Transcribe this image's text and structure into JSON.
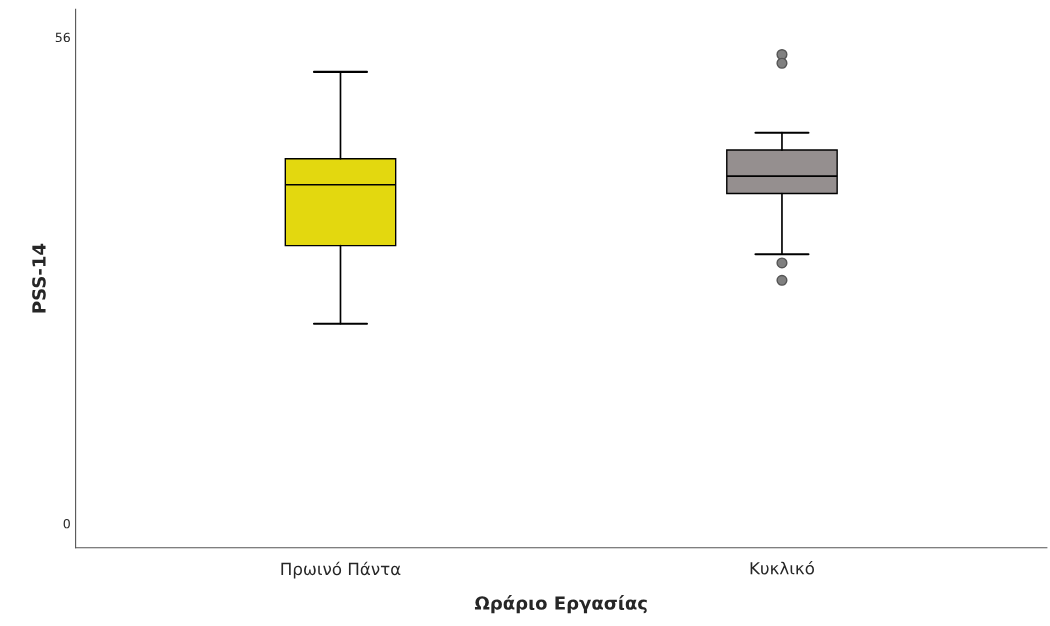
{
  "chart_data": {
    "type": "box",
    "xlabel": "Ωράριο Εργασίας",
    "ylabel": "PSS-14",
    "categories": [
      "Πρωινό Πάντα",
      "Κυκλικό"
    ],
    "colors": [
      "#e3d80f",
      "#958f8f"
    ],
    "boxes": [
      {
        "low": 23,
        "q1": 32,
        "median": 39,
        "q3": 42,
        "high": 52
      },
      {
        "low": 31,
        "q1": 38,
        "median": 40,
        "q3": 43,
        "high": 45,
        "outliers": [
          54,
          53,
          30,
          28
        ]
      }
    ],
    "ylim": [
      -2.8,
      59.2
    ],
    "yticks": [
      0,
      56
    ],
    "grid": false,
    "legend": false
  }
}
